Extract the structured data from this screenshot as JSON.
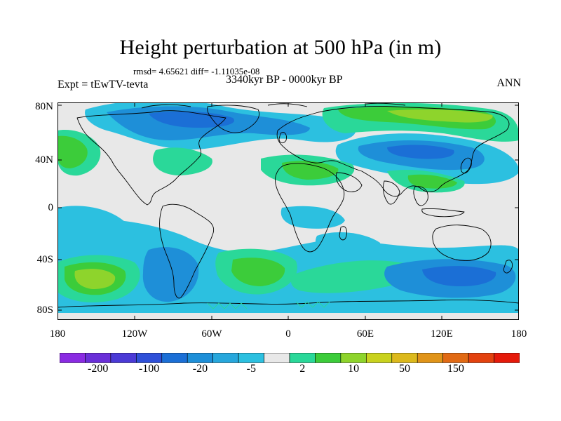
{
  "title": "Height perturbation at 500 hPa (in m)",
  "stats_text": "rmsd= 4.65621 diff= -1.11035e-08",
  "experiment": "Expt = tEwTV-tevta",
  "period": "3340kyr BP - 0000kyr BP",
  "season": "ANN",
  "lat_ticks": [
    "80N",
    "40N",
    "0",
    "40S",
    "80S"
  ],
  "lon_ticks": [
    "180",
    "120W",
    "60W",
    "0",
    "60E",
    "120E",
    "180"
  ],
  "colorbar": {
    "colors": [
      "#8a2be2",
      "#6a2fd8",
      "#4b3ad6",
      "#2f50d8",
      "#1b6fd6",
      "#1e8fd8",
      "#27a7dc",
      "#2cc0e0",
      "#e8e8e8",
      "#2ad899",
      "#3ccc3a",
      "#8ed42c",
      "#c9d21e",
      "#dcb91c",
      "#e09419",
      "#e16a14",
      "#e3420f",
      "#e51a0a"
    ],
    "labels": [
      {
        "text": "-200",
        "index": 1
      },
      {
        "text": "-100",
        "index": 3
      },
      {
        "text": "-20",
        "index": 5
      },
      {
        "text": "-5",
        "index": 7
      },
      {
        "text": "2",
        "index": 9
      },
      {
        "text": "10",
        "index": 11
      },
      {
        "text": "50",
        "index": 13
      },
      {
        "text": "150",
        "index": 15
      }
    ]
  },
  "palette": {
    "background": "#e8e8e8",
    "light_blue": "#2cc0e0",
    "mid_blue": "#1e8fd8",
    "blue": "#1b6fd6",
    "green_cyan": "#2ad899",
    "green": "#3ccc3a",
    "yellow_green": "#c9d21e"
  }
}
